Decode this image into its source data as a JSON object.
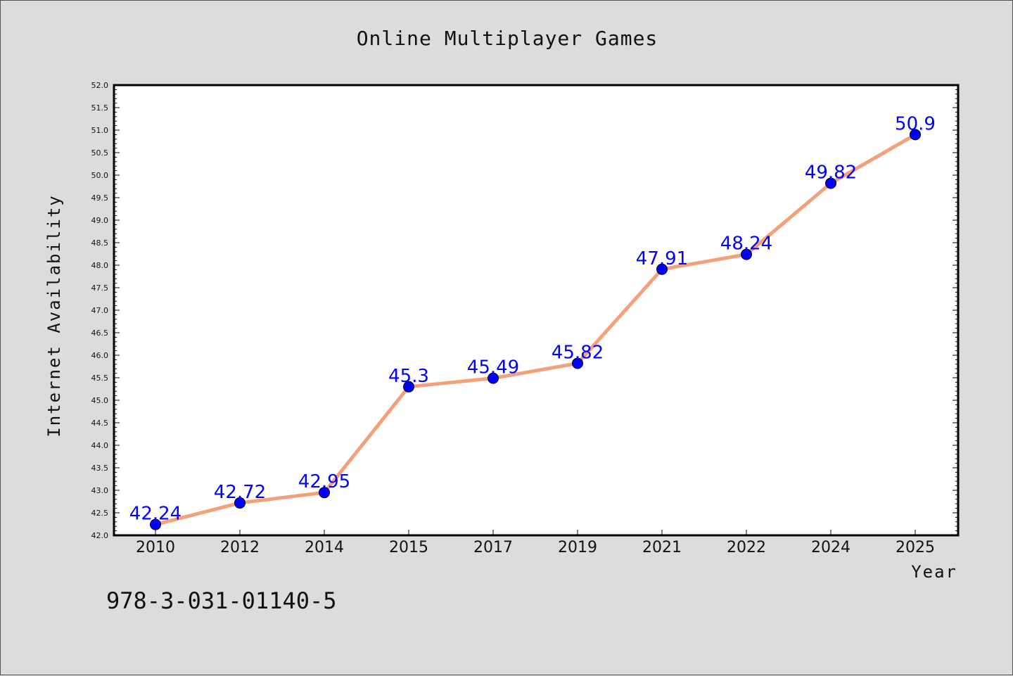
{
  "chart_data": {
    "type": "line",
    "title": "Online Multiplayer Games",
    "xlabel": "Year",
    "ylabel": "Internet Availability",
    "categories": [
      "2010",
      "2012",
      "2014",
      "2015",
      "2017",
      "2019",
      "2021",
      "2022",
      "2024",
      "2025"
    ],
    "series": [
      {
        "values": [
          42.24,
          42.72,
          42.95,
          45.3,
          45.49,
          45.82,
          47.91,
          48.24,
          49.82,
          50.9
        ],
        "data_labels": [
          "42.24",
          "42.72",
          "42.95",
          "45.3",
          "45.49",
          "45.82",
          "47.91",
          "48.24",
          "49.82",
          "50.9"
        ],
        "line_color": "#f4a07a",
        "marker_color": "#0000ff"
      }
    ],
    "ylim": [
      42.0,
      52.0
    ],
    "y_ticks": [
      "42.0",
      "42.5",
      "43.0",
      "43.5",
      "44.0",
      "44.5",
      "45.0",
      "45.5",
      "46.0",
      "46.5",
      "47.0",
      "47.5",
      "48.0",
      "48.5",
      "49.0",
      "49.5",
      "50.0",
      "50.5",
      "51.0",
      "51.5",
      "52.0"
    ],
    "grid": false,
    "legend": "none",
    "background_color": "#dcdcdc",
    "plot_background_color": "#ffffff",
    "data_label_color": "#0000ff"
  },
  "annotation": {
    "isbn": "978-3-031-01140-5"
  }
}
